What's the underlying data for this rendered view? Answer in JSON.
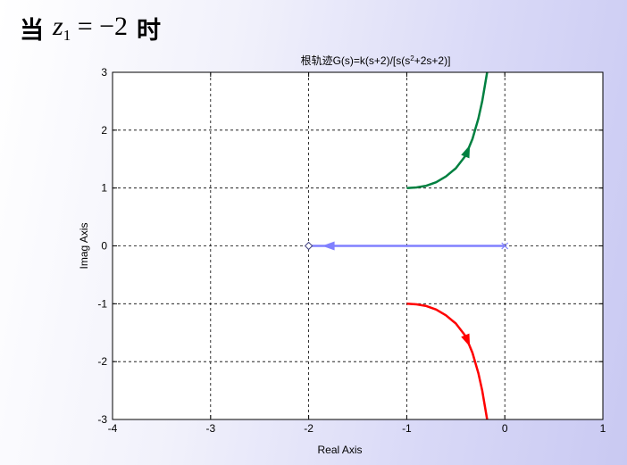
{
  "heading": {
    "prefix": "当",
    "expression_var": "z",
    "expression_sub": "1",
    "expression_rest": "= −2",
    "suffix": "时"
  },
  "chart_data": {
    "type": "line",
    "title": "根轨迹G(s)=k(s+2)/[s(s",
    "title_sup": "2",
    "title_end": "+2s+2)]",
    "xlabel": "Real Axis",
    "ylabel": "Imag Axis",
    "xlim": [
      -4,
      1
    ],
    "ylim": [
      -3,
      3
    ],
    "xticks": [
      -4,
      -3,
      -2,
      -1,
      0,
      1
    ],
    "yticks": [
      -3,
      -2,
      -1,
      0,
      1,
      2,
      3
    ],
    "grid": true,
    "series": [
      {
        "color": "#008040",
        "x": [
          -1.0,
          -0.9,
          -0.8,
          -0.7,
          -0.6,
          -0.5,
          -0.4,
          -0.33,
          -0.27,
          -0.23,
          -0.2,
          -0.18
        ],
        "y": [
          1.0,
          1.01,
          1.04,
          1.1,
          1.2,
          1.34,
          1.56,
          1.85,
          2.2,
          2.5,
          2.8,
          3.0
        ],
        "arrow_at_x": -0.38
      },
      {
        "color": "#ff0000",
        "x": [
          -1.0,
          -0.9,
          -0.8,
          -0.7,
          -0.6,
          -0.5,
          -0.4,
          -0.33,
          -0.27,
          -0.23,
          -0.2,
          -0.18
        ],
        "y": [
          -1.0,
          -1.01,
          -1.04,
          -1.1,
          -1.2,
          -1.34,
          -1.56,
          -1.85,
          -2.2,
          -2.5,
          -2.8,
          -3.0
        ],
        "arrow_at_x": -0.38
      },
      {
        "color": "#8080ff",
        "x": [
          0,
          -2
        ],
        "y": [
          0,
          0
        ],
        "arrow_at_x": -1.8
      }
    ],
    "poles": [
      {
        "x": 0,
        "y": 0,
        "marker": "x"
      }
    ],
    "zeros": [
      {
        "x": -2,
        "y": 0,
        "marker": "diamond"
      }
    ],
    "colors": {
      "plot_background": "#ffffff",
      "grid": "#000000"
    }
  }
}
